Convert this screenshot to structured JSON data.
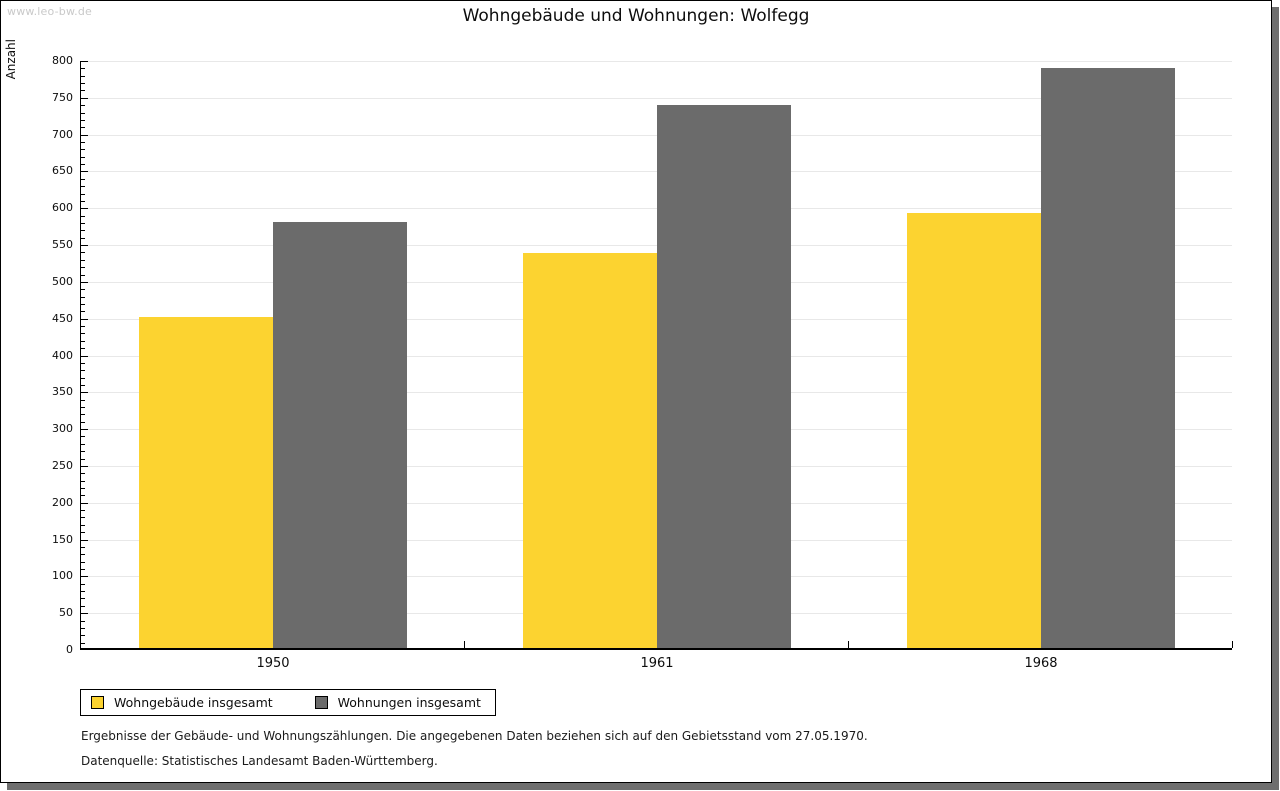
{
  "watermark": "www.leo-bw.de",
  "title": "Wohngebäude und Wohnungen: Wolfegg",
  "footer": {
    "line1": "Ergebnisse der Gebäude- und Wohnungszählungen. Die angegebenen Daten beziehen sich auf den Gebietsstand vom 27.05.1970.",
    "line2": "Datenquelle: Statistisches Landesamt Baden-Württemberg."
  },
  "chart_data": {
    "type": "bar",
    "title": "Wohngebäude und Wohnungen: Wolfegg",
    "xlabel": "",
    "ylabel": "Anzahl",
    "categories": [
      "1950",
      "1961",
      "1968"
    ],
    "series": [
      {
        "name": "Wohngebäude insgesamt",
        "color": "#fcd330",
        "values": [
          450,
          537,
          591
        ]
      },
      {
        "name": "Wohnungen insgesamt",
        "color": "#6b6b6b",
        "values": [
          579,
          738,
          788
        ]
      }
    ],
    "ylim": [
      0,
      800
    ],
    "ytick_step": 50,
    "ytick_minor_step": 10,
    "grid": "horizontal-major",
    "grid_color": "#e8e8e8",
    "legend_position": "bottom-left",
    "frame_shadow_color": "#6e6e6e"
  }
}
